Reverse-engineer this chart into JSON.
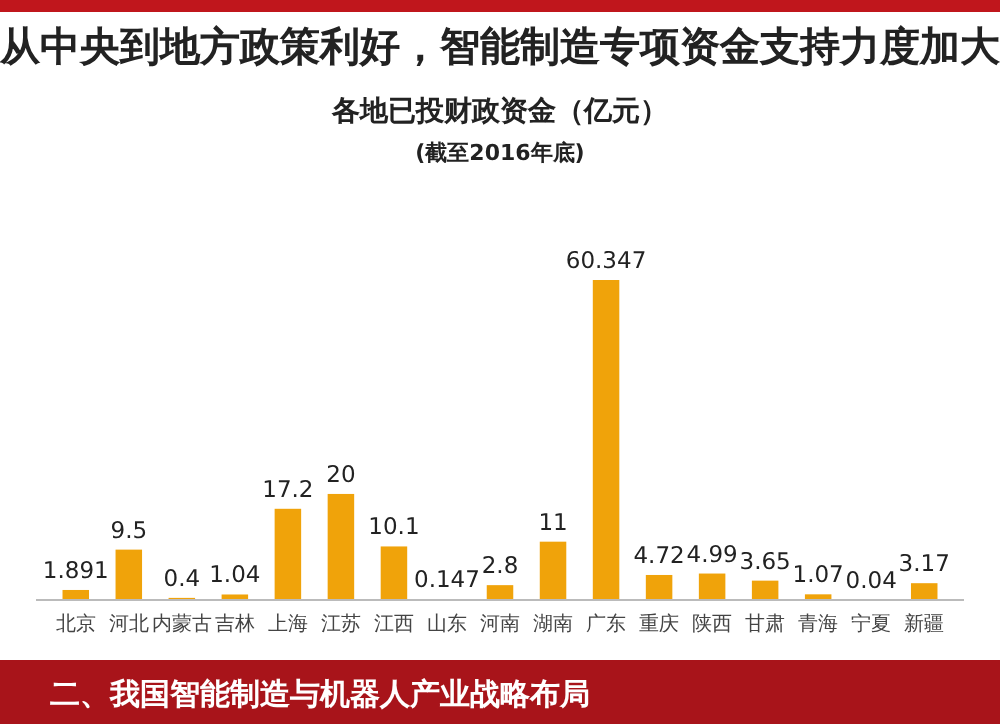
{
  "chart_data": {
    "type": "bar",
    "title": "各地已投财政资金（亿元）",
    "subtitle": "(截至2016年底)",
    "annotations": [
      "从中央到地方政策利好，智能制造专项资金支持力度加大",
      "二、我国智能制造与机器人产业战略布局"
    ],
    "categories": [
      "北京",
      "河北",
      "内蒙古",
      "吉林",
      "上海",
      "江苏",
      "江西",
      "山东",
      "河南",
      "湖南",
      "广东",
      "重庆",
      "陕西",
      "甘肃",
      "青海",
      "宁夏",
      "新疆"
    ],
    "values": [
      1.891,
      9.5,
      0.4,
      1.04,
      17.2,
      20,
      10.1,
      0.147,
      2.8,
      11,
      60.347,
      4.72,
      4.99,
      3.65,
      1.07,
      0.04,
      3.17
    ],
    "color": "#f0a30a",
    "data_labels": true
  }
}
